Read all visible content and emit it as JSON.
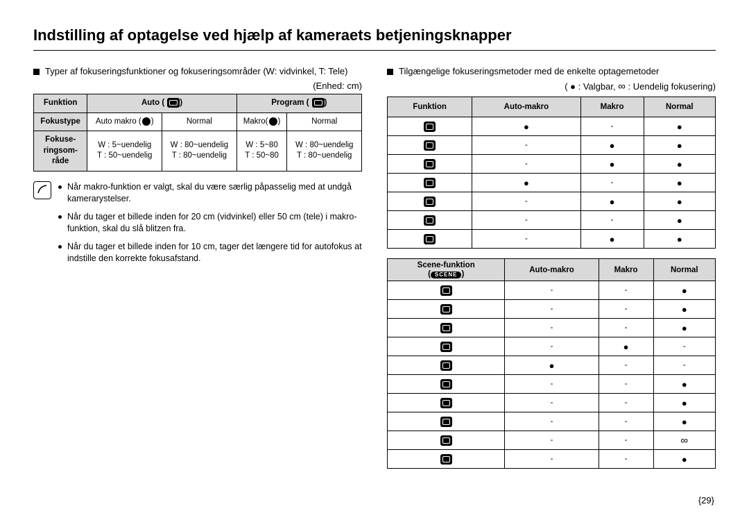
{
  "title": "Indstilling af optagelse ved hjælp af kameraets betjeningsknapper",
  "left": {
    "intro": "Typer af fokuseringsfunktioner og fokuseringsområder (W:  vidvinkel, T:  Tele)",
    "unit": "(Enhed:  cm)",
    "table": {
      "cols": [
        "Funktion",
        "Auto (",
        "Program ("
      ],
      "col_auto_suffix": ")",
      "col_prog_suffix": ")",
      "rows": {
        "fokustype_label": "Fokustype",
        "fokustype": [
          "Auto  makro  (",
          "Normal",
          "Makro(",
          "Normal"
        ],
        "fokustype_suffix1": ")",
        "fokustype_suffix2": ")",
        "range_label": "Fokuse-\nringsom-\nråde",
        "range": [
          "W : 5~uendelig\nT : 50~uendelig",
          "W : 80~uendelig\nT : 80~uendelig",
          "W : 5~80\nT : 50~80",
          "W : 80~uendelig\nT : 80~uendelig"
        ]
      }
    },
    "notes": [
      "Når makro-funktion er valgt, skal du være særlig påpasselig med at undgå kamerarystelser.",
      "Når du tager et billede inden for 20 cm (vidvinkel) eller 50 cm (tele) i makro-funktion, skal du slå blitzen fra.",
      "Når du tager et billede inden for 10 cm, tager det længere tid for autofokus at indstille den korrekte fokusafstand."
    ]
  },
  "right": {
    "intro": "Tilgængelige fokuseringsmetoder med de enkelte optagemetoder",
    "legend_prefix": "( ● :  Valgbar,  ",
    "legend_inf": "∞",
    "legend_suffix": ":  Uendelig fokusering)",
    "matrix1": {
      "cols": [
        "Funktion",
        "Auto-makro",
        "Makro",
        "Normal"
      ],
      "rows": [
        [
          "●",
          "-",
          "●"
        ],
        [
          "-",
          "●",
          "●"
        ],
        [
          "-",
          "●",
          "●"
        ],
        [
          "●",
          "-",
          "●"
        ],
        [
          "-",
          "●",
          "●"
        ],
        [
          "-",
          "-",
          "●"
        ],
        [
          "-",
          "●",
          "●"
        ]
      ]
    },
    "matrix2": {
      "hdr0_line1": "Scene-funktion",
      "hdr0_line2": "SCENE",
      "cols": [
        "Auto-makro",
        "Makro",
        "Normal"
      ],
      "rows": [
        [
          "-",
          "-",
          "●"
        ],
        [
          "-",
          "-",
          "●"
        ],
        [
          "-",
          "-",
          "●"
        ],
        [
          "-",
          "●",
          "-"
        ],
        [
          "●",
          "-",
          "-"
        ],
        [
          "-",
          "-",
          "●"
        ],
        [
          "-",
          "-",
          "●"
        ],
        [
          "-",
          "-",
          "●"
        ],
        [
          "-",
          "-",
          "∞"
        ],
        [
          "-",
          "-",
          "●"
        ]
      ]
    }
  },
  "page_number": "{29}"
}
